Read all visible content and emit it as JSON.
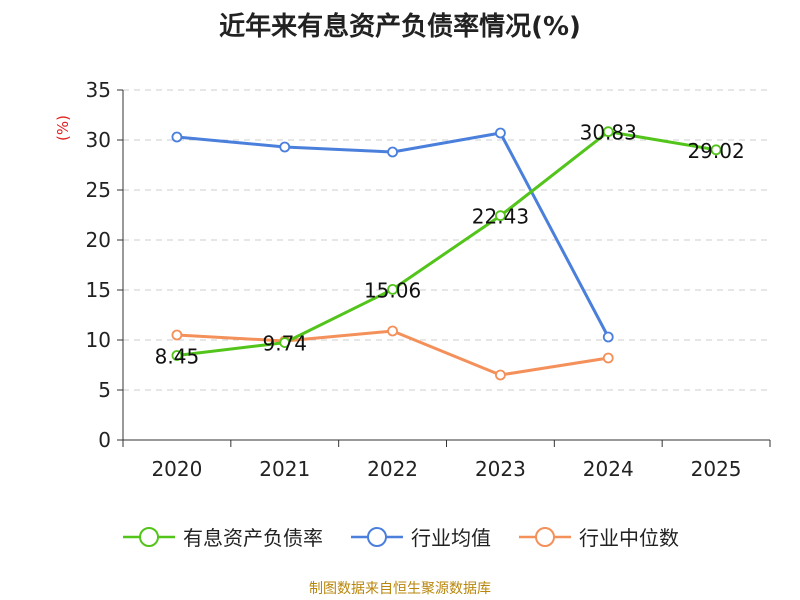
{
  "chart_data": {
    "type": "line",
    "title": "近年来有息资产负债率情况(%)",
    "ylabel": "(%)",
    "categories": [
      "2020",
      "2021",
      "2022",
      "2023",
      "2024",
      "2025"
    ],
    "ylim": [
      0,
      35
    ],
    "yticks": [
      0,
      5,
      10,
      15,
      20,
      25,
      30,
      35
    ],
    "grid": true,
    "legend_position": "bottom",
    "series": [
      {
        "name": "有息资产负债率",
        "color": "#52c41a",
        "values": [
          8.45,
          9.74,
          15.06,
          22.43,
          30.83,
          29.02
        ],
        "labels": [
          "8.45",
          "9.74",
          "15.06",
          "22.43",
          "30.83",
          "29.02"
        ]
      },
      {
        "name": "行业均值",
        "color": "#4a7fdc",
        "values": [
          30.3,
          29.3,
          28.8,
          30.7,
          10.3,
          null
        ]
      },
      {
        "name": "行业中位数",
        "color": "#f4905a",
        "values": [
          10.5,
          9.9,
          10.9,
          6.5,
          8.2,
          null
        ]
      }
    ]
  },
  "footer": {
    "source": "制图数据来自恒生聚源数据库"
  }
}
